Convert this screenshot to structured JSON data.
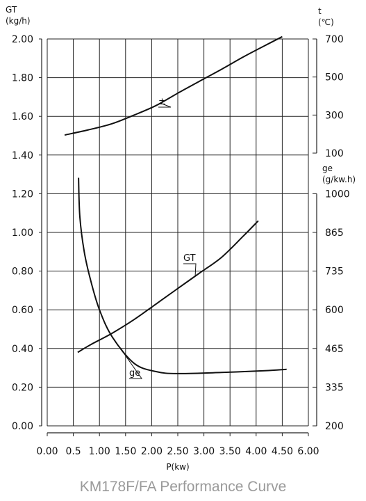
{
  "chart_data": {
    "type": "line",
    "caption": "KM178F/FA Performance Curve",
    "xlabel": "P(kw)",
    "x_ticks": [
      "0.00",
      "0.5",
      "1.00",
      "1.50",
      "2.00",
      "2.50",
      "3.00",
      "3.50",
      "4.00",
      "4.50",
      "6.00"
    ],
    "x_range": [
      0,
      6.0
    ],
    "grid": true,
    "axes": {
      "left": {
        "label_lines": [
          "GT",
          "(kg/h)"
        ],
        "range": [
          0.0,
          2.0
        ],
        "ticks": [
          "2.00",
          "1.80",
          "1.60",
          "1.40",
          "1.20",
          "1.00",
          "0.80",
          "0.60",
          "0.40",
          "0.20",
          "0.00"
        ]
      },
      "right_top": {
        "label_lines": [
          "t",
          "(℃)"
        ],
        "range": [
          100,
          700
        ],
        "ticks": [
          "700",
          "500",
          "300",
          "100"
        ]
      },
      "right_bottom": {
        "label_lines": [
          "ge",
          "(g/kw.h)"
        ],
        "range": [
          200,
          1000
        ],
        "ticks": [
          "1000",
          "865",
          "735",
          "600",
          "465",
          "335",
          "200"
        ]
      }
    },
    "series": [
      {
        "name": "±",
        "axis": "right_top",
        "x": [
          0.4,
          1.0,
          1.5,
          2.0,
          2.5,
          3.0,
          3.5,
          4.0,
          4.5,
          5.0,
          5.4
        ],
        "y": [
          195,
          225,
          255,
          300,
          350,
          415,
          478,
          540,
          605,
          665,
          712
        ]
      },
      {
        "name": "GT",
        "axis": "left",
        "x": [
          0.7,
          1.0,
          1.5,
          2.0,
          2.5,
          3.0,
          3.5,
          4.0,
          4.5,
          4.85
        ],
        "y": [
          0.38,
          0.42,
          0.48,
          0.55,
          0.63,
          0.71,
          0.79,
          0.87,
          0.98,
          1.06
        ]
      },
      {
        "name": "ge",
        "axis": "right_bottom",
        "x": [
          0.72,
          0.75,
          0.85,
          1.0,
          1.2,
          1.5,
          2.0,
          2.5,
          3.0,
          4.0,
          5.0,
          5.5
        ],
        "y": [
          1055,
          920,
          800,
          700,
          600,
          505,
          415,
          387,
          380,
          384,
          390,
          395
        ]
      }
    ]
  }
}
